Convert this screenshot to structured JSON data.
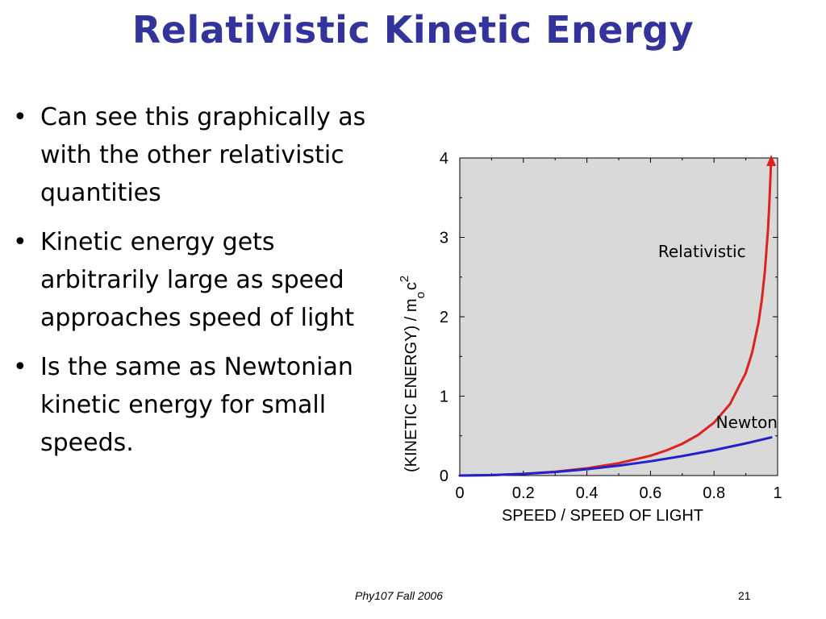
{
  "slide": {
    "title": "Relativistic Kinetic Energy",
    "bullets": [
      "Can see this graphically as with the other relativistic quantities",
      "Kinetic energy gets arbitrarily large as speed approaches speed of light",
      "Is the same as Newtonian kinetic energy for small speeds."
    ],
    "bullet_glyph": "•",
    "footer_left": "Phy107 Fall 2006",
    "footer_right": "21"
  },
  "chart_data": {
    "type": "line",
    "xlabel": "SPEED  /  SPEED OF LIGHT",
    "ylabel_main": "(KINETIC ENERGY)  /  m",
    "ylabel_sub": "o",
    "ylabel_c": "c",
    "ylabel_sup": "2",
    "xlim": [
      0,
      1
    ],
    "ylim": [
      0,
      4
    ],
    "x_ticks": [
      "0",
      "0.2",
      "0.4",
      "0.6",
      "0.8",
      "1"
    ],
    "y_ticks": [
      "0",
      "1",
      "2",
      "3",
      "4"
    ],
    "plot_background": "#d9d9d9",
    "series": [
      {
        "name": "Relativistic",
        "color": "#dd2222",
        "points": [
          [
            0,
            0
          ],
          [
            0.1,
            0.005
          ],
          [
            0.2,
            0.021
          ],
          [
            0.3,
            0.048
          ],
          [
            0.4,
            0.091
          ],
          [
            0.5,
            0.155
          ],
          [
            0.6,
            0.25
          ],
          [
            0.65,
            0.316
          ],
          [
            0.7,
            0.4
          ],
          [
            0.75,
            0.512
          ],
          [
            0.8,
            0.667
          ],
          [
            0.85,
            0.898
          ],
          [
            0.9,
            1.294
          ],
          [
            0.92,
            1.552
          ],
          [
            0.94,
            1.931
          ],
          [
            0.95,
            2.203
          ],
          [
            0.96,
            2.571
          ],
          [
            0.97,
            3.113
          ],
          [
            0.975,
            3.5
          ],
          [
            0.98,
            4.0
          ]
        ]
      },
      {
        "name": "Newton",
        "color": "#2222cc",
        "points": [
          [
            0,
            0
          ],
          [
            0.1,
            0.005
          ],
          [
            0.2,
            0.02
          ],
          [
            0.3,
            0.045
          ],
          [
            0.4,
            0.08
          ],
          [
            0.5,
            0.125
          ],
          [
            0.6,
            0.18
          ],
          [
            0.7,
            0.245
          ],
          [
            0.8,
            0.32
          ],
          [
            0.9,
            0.405
          ],
          [
            0.98,
            0.48
          ]
        ]
      }
    ],
    "annotations": [
      {
        "text": "Relativistic",
        "x": 0.9,
        "y": 2.75
      },
      {
        "text": "Newton",
        "x": 1.0,
        "y": 0.6
      }
    ]
  }
}
